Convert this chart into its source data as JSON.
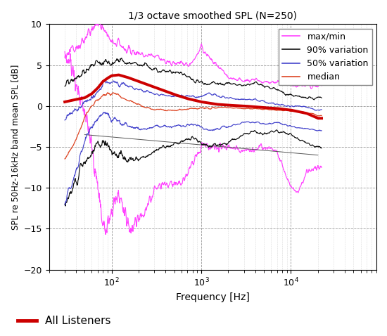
{
  "title": "1/3 octave smoothed SPL (N=250)",
  "xlabel": "Frequency [Hz]",
  "ylabel": "SPL re 50Hz-16kHz band mean SPL [dB]",
  "xlim": [
    30,
    22000
  ],
  "ylim": [
    -20,
    10
  ],
  "yticks": [
    -20,
    -15,
    -10,
    -5,
    0,
    5,
    10
  ],
  "legend_entries": [
    "max/min",
    "90% variation",
    "50% variation",
    "median"
  ],
  "legend_colors": [
    "#ff44ff",
    "#111111",
    "#4444cc",
    "#dd4422"
  ],
  "all_listeners_color": "#cc0000",
  "all_listeners_label": "All Listeners",
  "background_color": "#ffffff",
  "grid_major_color": "#888888",
  "grid_minor_color": "#cccccc"
}
